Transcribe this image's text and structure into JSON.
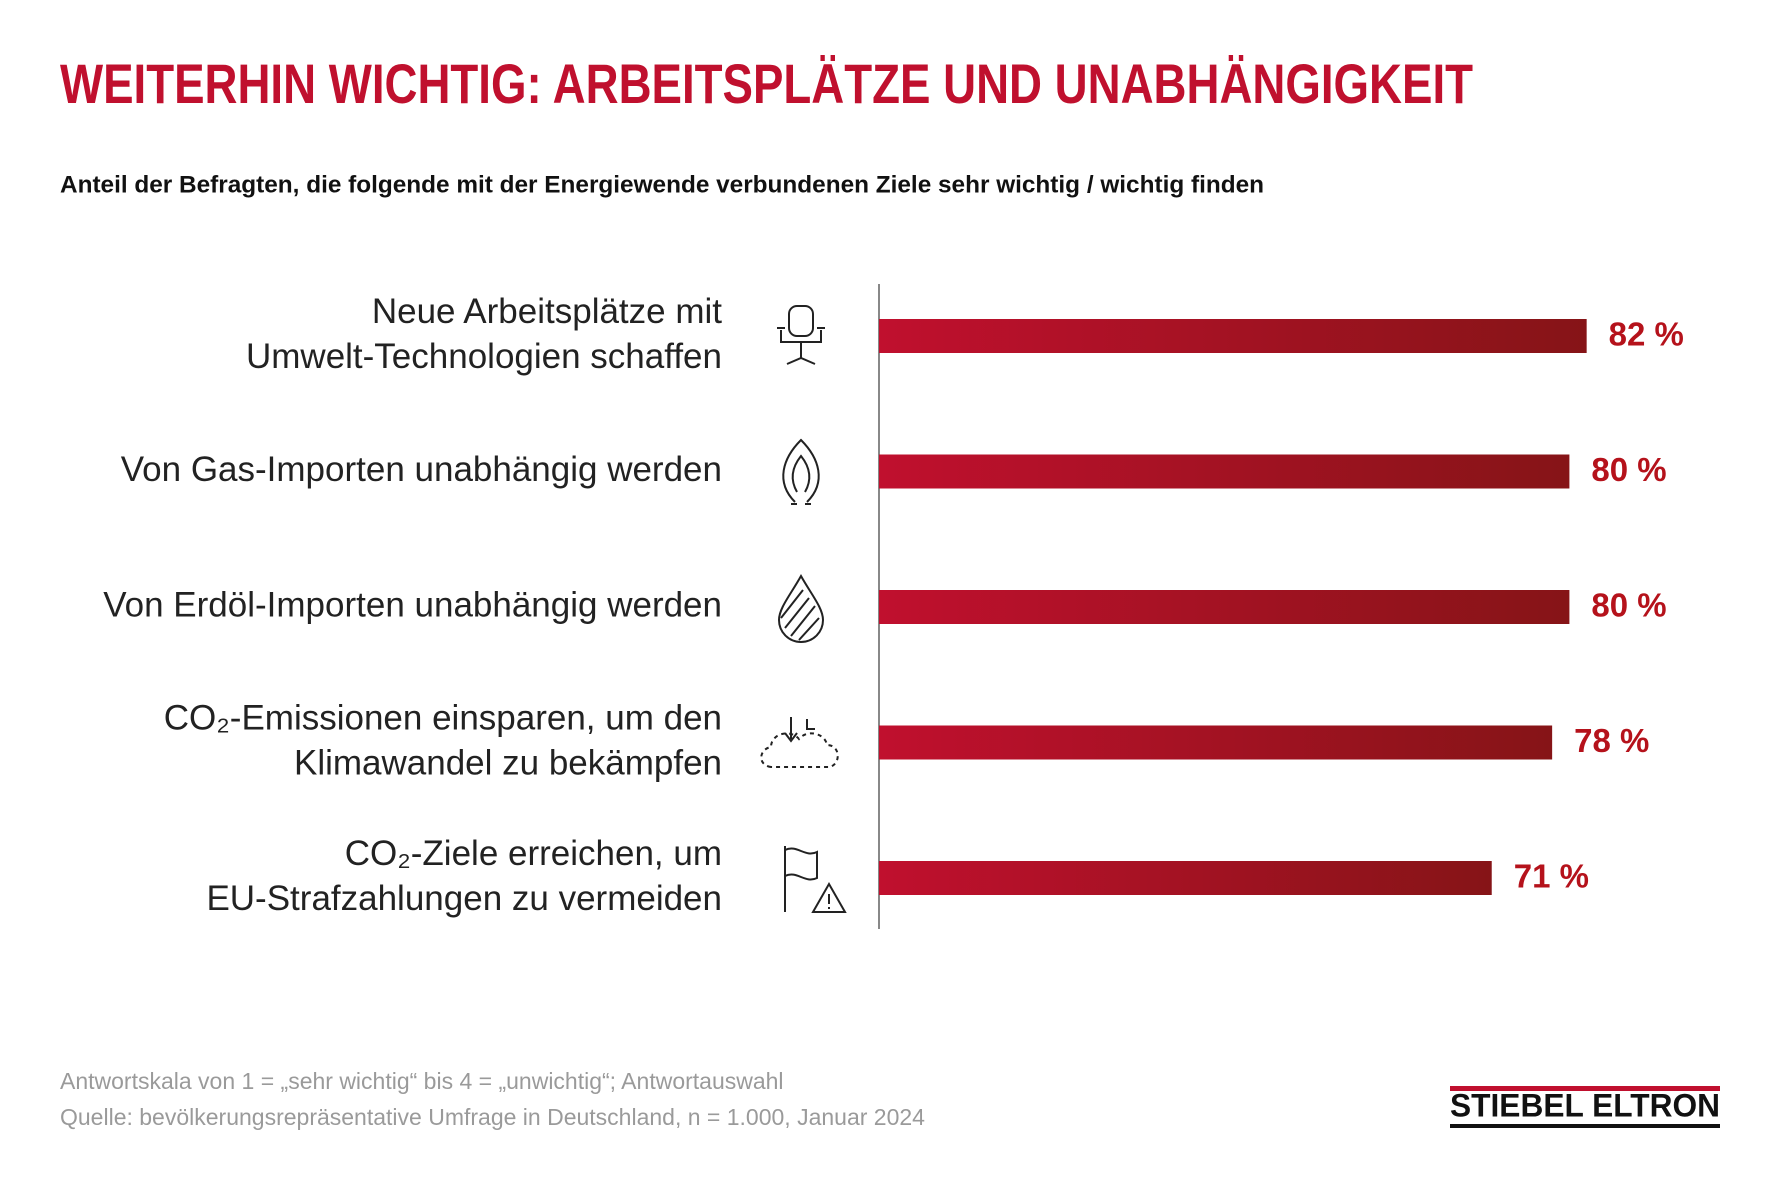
{
  "chart_data": {
    "type": "barh",
    "title": "WEITERHIN WICHTIG: ARBEITSPLÄTZE UND UNABHÄNGIGKEIT",
    "subtitle": "Anteil der Befragten, die folgende mit der Energiewende verbundenen Ziele sehr wichtig / wichtig finden",
    "categories": [
      [
        "Neue Arbeitsplätze mit",
        "Umwelt-Technologien schaffen"
      ],
      [
        "Von Gas-Importen unabhängig werden"
      ],
      [
        "Von Erdöl-Importen unabhängig werden"
      ],
      [
        "CO₂-Emissionen einsparen, um den",
        "Klimawandel zu bekämpfen"
      ],
      [
        "CO₂-Ziele erreichen, um",
        "EU-Strafzahlungen zu vermeiden"
      ]
    ],
    "values": [
      82,
      80,
      80,
      78,
      71
    ],
    "value_labels": [
      "82 %",
      "80 %",
      "80 %",
      "78 %",
      "71 %"
    ],
    "color": "#c0102e",
    "footnotes": [
      "Antwortskala von 1 = „sehr wichtig“ bis 4 = „unwichtig“; Antwortauswahl",
      "Quelle: bevölkerungsrepräsentative Umfrage in Deutschland, n = 1.000, Januar 2024"
    ],
    "logo": "STIEBEL ELTRON"
  }
}
